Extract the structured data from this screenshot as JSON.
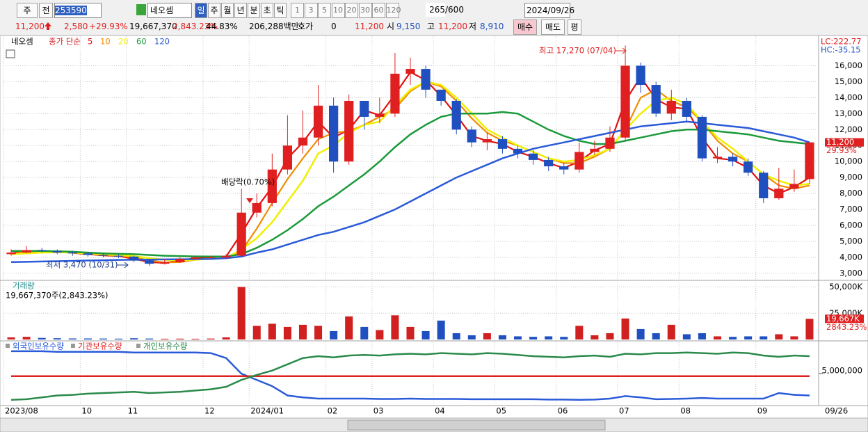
{
  "toolbar": {
    "market": "주",
    "prev": "전",
    "code": "253590",
    "name": "네오셈",
    "periods": [
      "일",
      "주",
      "월",
      "년",
      "분",
      "초",
      "틱"
    ],
    "intervals": [
      "1",
      "3",
      "5",
      "10",
      "20",
      "30",
      "60",
      "120"
    ],
    "count": "265",
    "max": "/600",
    "date": "2024/09/26"
  },
  "quote": {
    "price": "11,200",
    "change": "2,580",
    "change_pct": "+29.93%",
    "volume": "19,667,370",
    "volume_ratio": "2,843.23%",
    "turnover": "44.83%",
    "amount": "206,288백만",
    "hoga_label": "호가",
    "hoga": "0",
    "hoga_price": "11,200",
    "open_label": "시",
    "open": "9,150",
    "high_label": "고",
    "high": "11,200",
    "low_label": "저",
    "low": "8,910",
    "buy": "매수",
    "sell": "매도",
    "avg": "평"
  },
  "chart_data": [
    {
      "type": "candlestick",
      "title": "네오셈",
      "subtitle": "종가 단순",
      "lc": "LC:222.77",
      "hc": "HC:-35.15",
      "categories": [
        "2023/08",
        null,
        null,
        null,
        null,
        "10",
        null,
        null,
        "11",
        null,
        null,
        null,
        null,
        "12",
        null,
        null,
        "2024/01",
        null,
        null,
        null,
        null,
        "02",
        null,
        null,
        "03",
        null,
        null,
        null,
        "04",
        null,
        null,
        null,
        "05",
        null,
        null,
        null,
        "06",
        null,
        null,
        null,
        "07",
        null,
        null,
        null,
        "08",
        null,
        null,
        null,
        null,
        "09",
        null,
        null,
        null
      ],
      "end_label": "09/26",
      "open": [
        4200,
        4300,
        4450,
        4400,
        4300,
        4250,
        4150,
        4100,
        4050,
        3800,
        3600,
        3700,
        3900,
        4000,
        4000,
        4100,
        6800,
        7400,
        9500,
        11000,
        11500,
        13500,
        10000,
        13800,
        12800,
        13000,
        15500,
        15800,
        14500,
        13800,
        12000,
        11200,
        11400,
        10800,
        10500,
        10100,
        9700,
        9500,
        10600,
        10800,
        11500,
        16000,
        14800,
        13000,
        13800,
        12800,
        10200,
        10300,
        10000,
        9300,
        7700,
        8300,
        8900
      ],
      "high": [
        4500,
        4700,
        4600,
        4500,
        4400,
        4350,
        4250,
        4200,
        4100,
        3900,
        3900,
        4000,
        4100,
        4100,
        4200,
        8300,
        8000,
        10500,
        12900,
        13200,
        14800,
        14000,
        14200,
        13800,
        14000,
        16800,
        16500,
        16000,
        14500,
        13900,
        12200,
        11800,
        11600,
        11000,
        10700,
        10300,
        9900,
        11200,
        11300,
        12200,
        17270,
        16200,
        15000,
        14500,
        14000,
        12900,
        10900,
        10500,
        10200,
        9400,
        9600,
        9500,
        11200
      ],
      "low": [
        4100,
        4250,
        4300,
        4200,
        4100,
        4050,
        4000,
        3950,
        3700,
        3470,
        3550,
        3650,
        3850,
        3900,
        3900,
        4000,
        6500,
        7200,
        9200,
        10500,
        11000,
        9300,
        9800,
        12000,
        12400,
        12800,
        14800,
        14000,
        13500,
        11700,
        10900,
        10700,
        10500,
        10200,
        9800,
        9400,
        9200,
        9300,
        10400,
        10600,
        11300,
        14300,
        12800,
        12600,
        12500,
        10000,
        9900,
        9700,
        9100,
        7400,
        7600,
        8100,
        8600
      ],
      "close": [
        4300,
        4450,
        4400,
        4300,
        4250,
        4150,
        4100,
        4050,
        3800,
        3600,
        3700,
        3900,
        4000,
        4000,
        4100,
        6800,
        7400,
        9500,
        11000,
        11500,
        13500,
        10000,
        13800,
        12800,
        13000,
        15500,
        15800,
        14500,
        13800,
        12000,
        11200,
        11400,
        10800,
        10500,
        10100,
        9700,
        9500,
        10600,
        10800,
        11500,
        16000,
        14800,
        13000,
        13800,
        12800,
        10200,
        10300,
        10000,
        9300,
        7700,
        8300,
        8600,
        11200
      ],
      "up_color": "#e02020",
      "down_color": "#2050c0",
      "series": [
        {
          "name": "5",
          "color": "#e01010",
          "values": [
            4250,
            4400,
            4420,
            4350,
            4280,
            4200,
            4120,
            4080,
            3900,
            3700,
            3650,
            3800,
            3950,
            4000,
            4050,
            5500,
            7100,
            8400,
            10200,
            11200,
            12500,
            11500,
            12000,
            13200,
            12900,
            14200,
            15600,
            15100,
            14100,
            12900,
            11600,
            11300,
            11100,
            10600,
            10300,
            9900,
            9600,
            10000,
            10700,
            11100,
            13800,
            15300,
            13900,
            13400,
            13300,
            11500,
            10200,
            10100,
            9600,
            8500,
            8000,
            8400,
            9000
          ]
        },
        {
          "name": "10",
          "color": "#f08c00",
          "values": [
            4200,
            4350,
            4400,
            4380,
            4320,
            4230,
            4150,
            4100,
            4000,
            3800,
            3680,
            3700,
            3850,
            3950,
            4000,
            4400,
            5800,
            7400,
            8900,
            10200,
            11400,
            11800,
            11900,
            12300,
            12800,
            13300,
            14400,
            15000,
            14700,
            13800,
            12700,
            11800,
            11300,
            11000,
            10600,
            10200,
            9900,
            9900,
            10300,
            10800,
            12000,
            14000,
            14500,
            13800,
            13400,
            12500,
            11300,
            10500,
            10000,
            9200,
            8500,
            8300,
            8500
          ]
        },
        {
          "name": "20",
          "color": "#f0f000",
          "values": [
            4200,
            4250,
            4300,
            4320,
            4300,
            4250,
            4200,
            4150,
            4080,
            3950,
            3850,
            3800,
            3850,
            3900,
            3950,
            4500,
            5200,
            6200,
            7500,
            8800,
            10500,
            11000,
            11800,
            12300,
            12500,
            13500,
            14500,
            15000,
            14800,
            14000,
            13000,
            12000,
            11500,
            11000,
            10600,
            10200,
            10000,
            10100,
            10400,
            10800,
            12000,
            13000,
            13800,
            14000,
            13600,
            12500,
            11500,
            10800,
            10000,
            9200,
            8800,
            8500,
            8600
          ]
        },
        {
          "name": "60",
          "color": "#1a9a3a",
          "values": [
            4400,
            4400,
            4400,
            4380,
            4350,
            4300,
            4250,
            4220,
            4200,
            4150,
            4100,
            4080,
            4060,
            4050,
            4050,
            4200,
            4600,
            5100,
            5700,
            6400,
            7200,
            7800,
            8500,
            9200,
            10000,
            10900,
            11700,
            12300,
            12800,
            13000,
            13000,
            13000,
            13100,
            13000,
            12500,
            12000,
            11600,
            11300,
            11100,
            11100,
            11300,
            11500,
            11700,
            11900,
            12000,
            12000,
            11900,
            11800,
            11700,
            11500,
            11300,
            11200,
            11100
          ]
        },
        {
          "name": "120",
          "color": "#2a5ad8",
          "values": [
            3700,
            3720,
            3740,
            3760,
            3780,
            3800,
            3820,
            3840,
            3850,
            3860,
            3870,
            3880,
            3890,
            3900,
            3950,
            4050,
            4300,
            4500,
            4800,
            5100,
            5400,
            5600,
            5900,
            6200,
            6600,
            7000,
            7500,
            8000,
            8500,
            9000,
            9400,
            9800,
            10200,
            10500,
            10800,
            11000,
            11200,
            11400,
            11600,
            11800,
            12000,
            12200,
            12300,
            12400,
            12500,
            12400,
            12300,
            12200,
            12100,
            11900,
            11700,
            11500,
            11200
          ]
        }
      ],
      "ylim": [
        2560,
        17850
      ],
      "yticks": [
        {
          "value": 3000,
          "label": "3,000"
        },
        {
          "value": 4000,
          "label": "4,000"
        },
        {
          "value": 5000,
          "label": "5,000"
        },
        {
          "value": 6000,
          "label": "6,000"
        },
        {
          "value": 7000,
          "label": "7,000"
        },
        {
          "value": 8000,
          "label": "8,000"
        },
        {
          "value": 9000,
          "label": "9,000"
        },
        {
          "value": 10000,
          "label": "10,000"
        },
        {
          "value": 11000,
          "label": "11,000"
        },
        {
          "value": 12000,
          "label": "12,000"
        },
        {
          "value": 13000,
          "label": "13,000"
        },
        {
          "value": 14000,
          "label": "14,000"
        },
        {
          "value": 15000,
          "label": "15,000"
        },
        {
          "value": 16000,
          "label": "16,000"
        }
      ],
      "current": {
        "value": 11200,
        "label": "11,200",
        "change": "29.93%"
      },
      "annotations": [
        "최고 17,270 (07/04)",
        "최저 3,470 (10/31)",
        "배당락(0.70%)"
      ]
    },
    {
      "type": "bar",
      "title": "거래량",
      "subtitle": "19,667,370주(2,843.23%)",
      "color": "#d02020",
      "values": [
        2000,
        2500,
        1500,
        1200,
        1000,
        1000,
        900,
        800,
        1200,
        900,
        700,
        800,
        700,
        900,
        2000,
        50000,
        13000,
        15000,
        12000,
        14000,
        13000,
        8000,
        22000,
        12000,
        9000,
        23000,
        12000,
        8000,
        18000,
        6000,
        4000,
        6000,
        4000,
        3000,
        2500,
        3000,
        2500,
        13000,
        4000,
        6000,
        20000,
        10000,
        6000,
        14000,
        5000,
        6000,
        3000,
        2500,
        3000,
        3000,
        5000,
        3000,
        19667
      ],
      "ylim": [
        0,
        55000
      ],
      "yticks": [
        {
          "value": 50000,
          "label": "50,000K"
        },
        {
          "value": 25000,
          "label": "25,000K"
        }
      ],
      "current": {
        "value": 19667,
        "label": "19,667K",
        "ratio": "2843.23%"
      }
    },
    {
      "type": "line",
      "ylim": [
        0,
        9700000
      ],
      "yticks": [
        {
          "value": 5000000,
          "label": "5,000,000"
        }
      ],
      "series": [
        {
          "name": "외국인보유수량",
          "color": "#2a5ad8",
          "values": [
            8600000,
            8600000,
            8600000,
            8500000,
            8500000,
            8500000,
            8500000,
            8500000,
            8400000,
            8400000,
            8400000,
            8400000,
            8400000,
            8300000,
            7500000,
            5000000,
            4000000,
            3000000,
            1500000,
            1200000,
            1000000,
            1000000,
            1000000,
            1000000,
            950000,
            950000,
            1000000,
            950000,
            950000,
            950000,
            900000,
            900000,
            900000,
            900000,
            900000,
            850000,
            850000,
            800000,
            850000,
            1000000,
            1400000,
            1200000,
            900000,
            950000,
            1000000,
            1100000,
            1000000,
            1000000,
            1000000,
            1000000,
            1900000,
            1600000,
            1500000
          ]
        },
        {
          "name": "기관보유수량",
          "color": "#e02020",
          "values": [
            4600000,
            4600000,
            4600000,
            4600000,
            4600000,
            4600000,
            4600000,
            4600000,
            4600000,
            4600000,
            4600000,
            4600000,
            4600000,
            4600000,
            4600000,
            4600000,
            4600000,
            4600000,
            4600000,
            4600000,
            4600000,
            4600000,
            4600000,
            4600000,
            4600000,
            4600000,
            4600000,
            4600000,
            4600000,
            4600000,
            4600000,
            4600000,
            4600000,
            4600000,
            4600000,
            4600000,
            4600000,
            4600000,
            4600000,
            4600000,
            4600000,
            4600000,
            4600000,
            4600000,
            4600000,
            4600000,
            4600000,
            4600000,
            4600000,
            4600000,
            4600000,
            4600000,
            4600000
          ]
        },
        {
          "name": "개인보유수량",
          "color": "#2a8a4a",
          "values": [
            800000,
            900000,
            1200000,
            1500000,
            1600000,
            1800000,
            1900000,
            2000000,
            2100000,
            1900000,
            2000000,
            2100000,
            2300000,
            2500000,
            2900000,
            4000000,
            4800000,
            5500000,
            6500000,
            7500000,
            7800000,
            7600000,
            7900000,
            8000000,
            7900000,
            8100000,
            8200000,
            8100000,
            8300000,
            8200000,
            8100000,
            8300000,
            8200000,
            8000000,
            7800000,
            7700000,
            7600000,
            7800000,
            7900000,
            7700000,
            8200000,
            8100000,
            8300000,
            8300000,
            8400000,
            8300000,
            8200000,
            8400000,
            8300000,
            7900000,
            7700000,
            7900000,
            7800000
          ]
        }
      ]
    }
  ]
}
